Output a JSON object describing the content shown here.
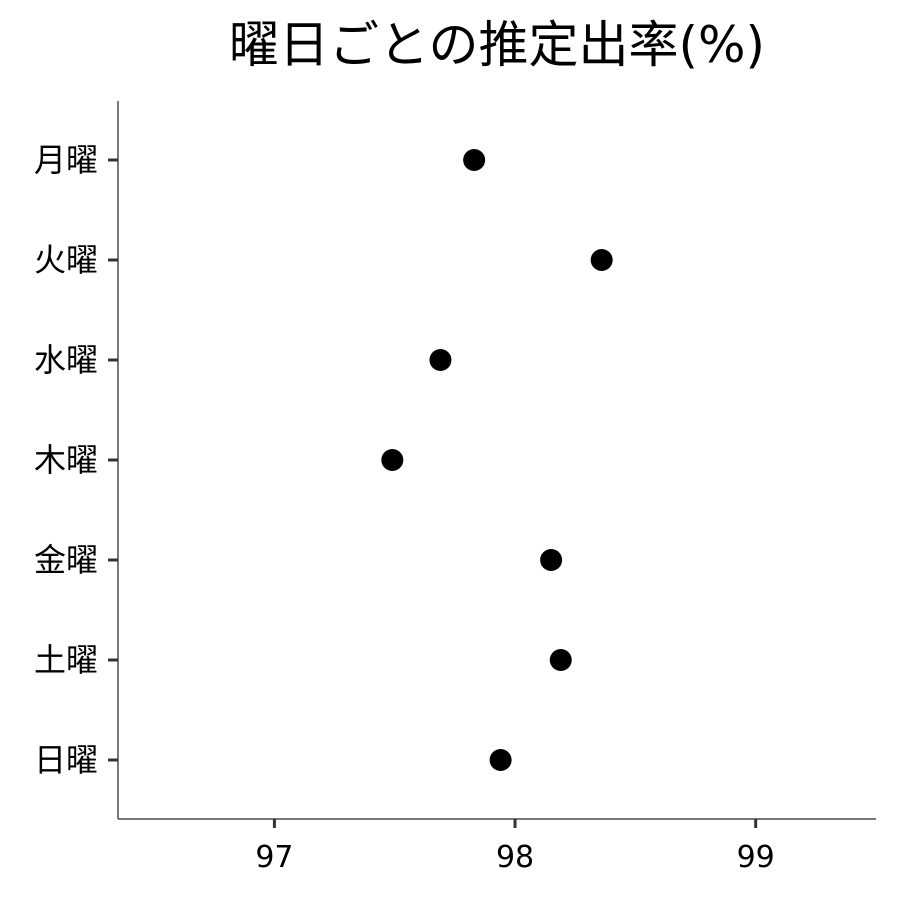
{
  "chart_data": {
    "type": "scatter",
    "title": "曜日ごとの推定出率(%)",
    "xlabel": "",
    "ylabel": "",
    "categories": [
      "月曜",
      "火曜",
      "水曜",
      "木曜",
      "金曜",
      "土曜",
      "日曜"
    ],
    "values": [
      97.83,
      98.36,
      97.69,
      97.49,
      98.15,
      98.19,
      97.94
    ],
    "xlim": [
      96.35,
      99.5
    ],
    "xticks": [
      97,
      98,
      99
    ],
    "xtick_labels": [
      "97",
      "98",
      "99"
    ],
    "grid": false,
    "legend": "none",
    "point_color": "#000000"
  }
}
